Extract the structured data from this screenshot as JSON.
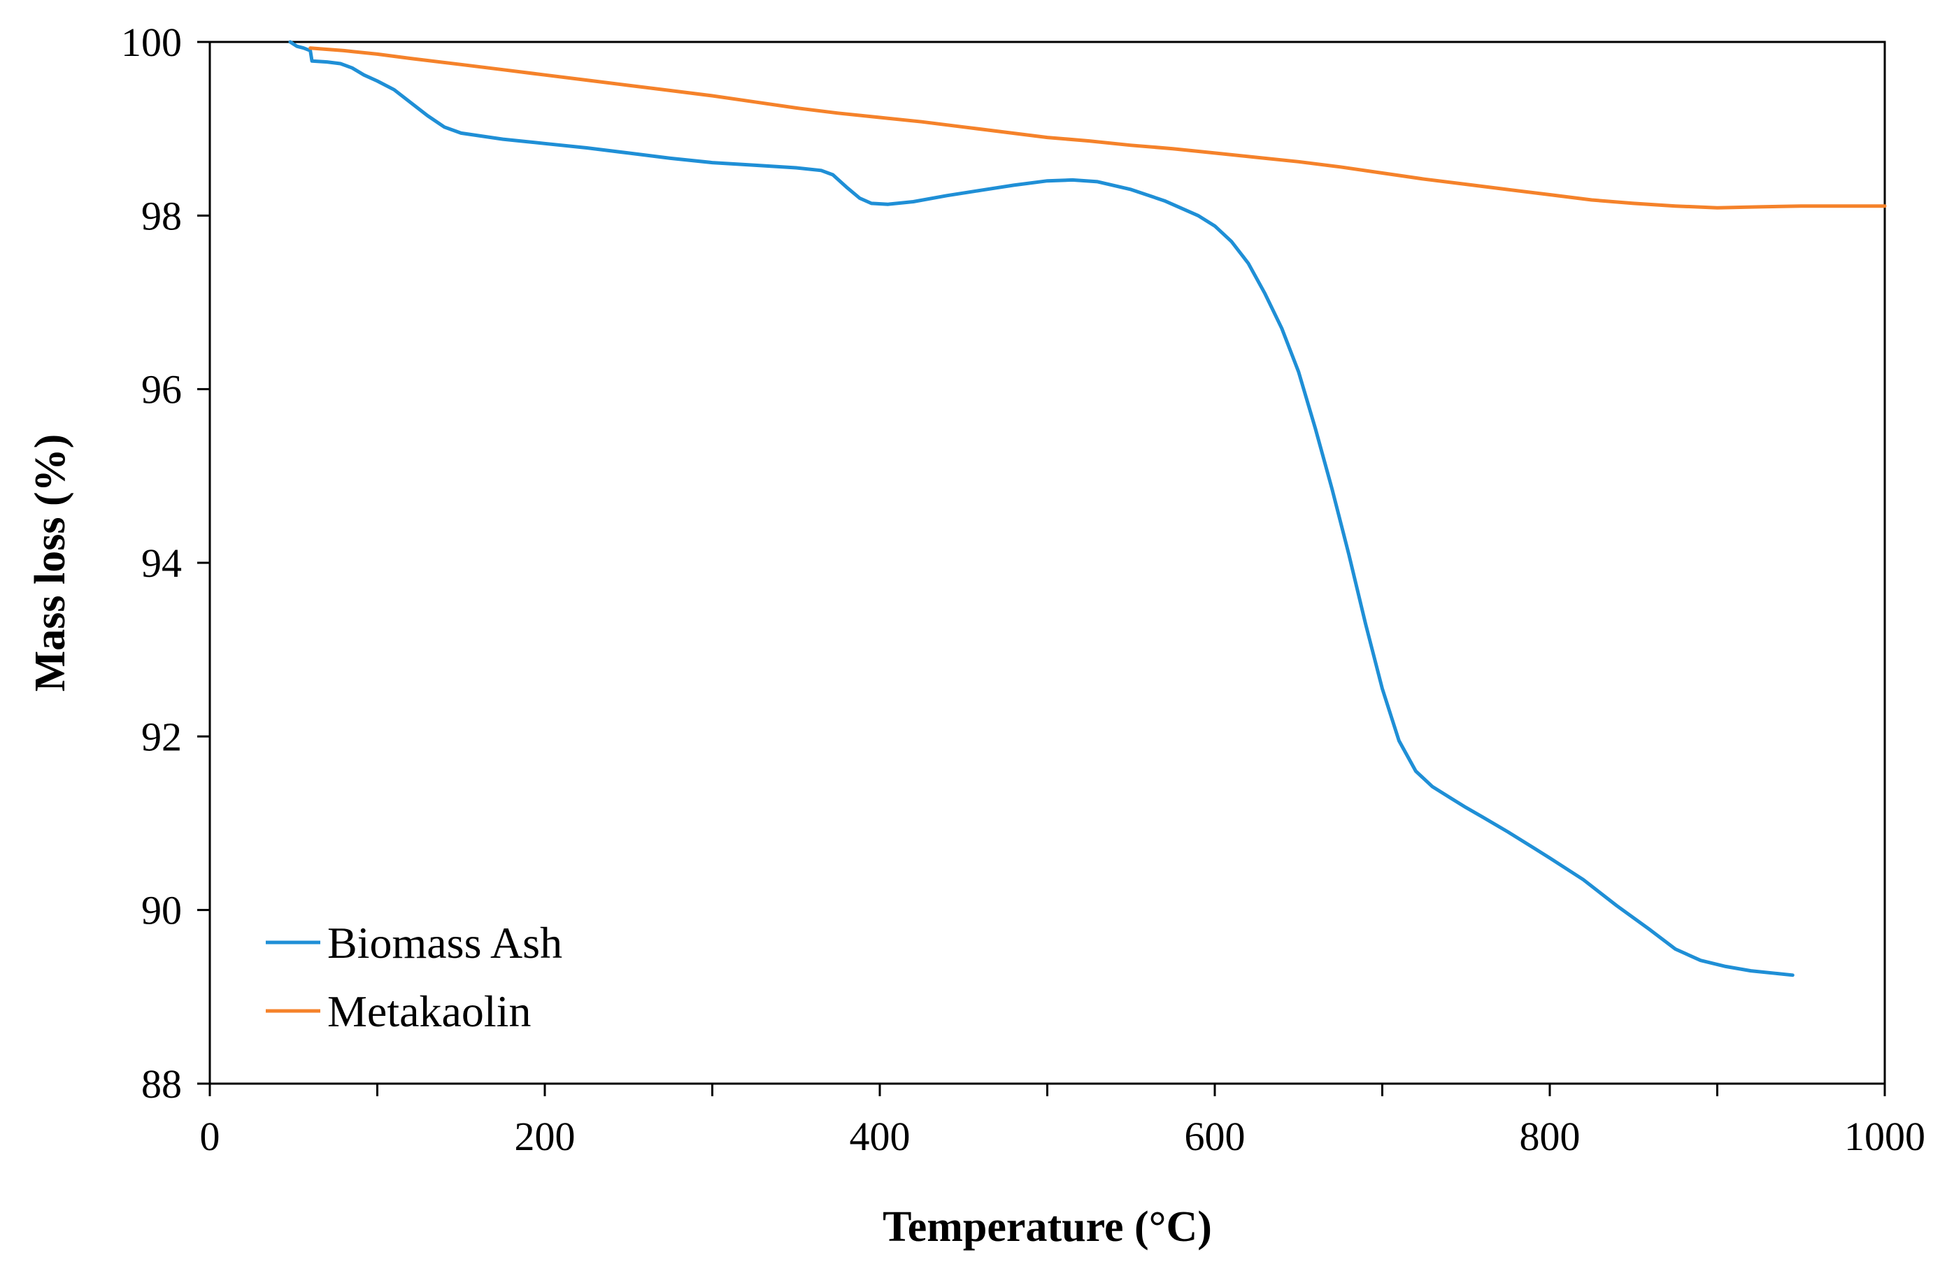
{
  "chart_data": {
    "type": "line",
    "title": "",
    "xlabel": "Temperature (°C)",
    "ylabel": "Mass loss (%)",
    "xlim": [
      0,
      1000
    ],
    "ylim": [
      88,
      100
    ],
    "x_ticks": [
      0,
      200,
      400,
      600,
      800,
      1000
    ],
    "x_minor_ticks": [
      100,
      300,
      500,
      700,
      900
    ],
    "y_ticks": [
      88,
      90,
      92,
      94,
      96,
      98,
      100
    ],
    "x_tick_labels": [
      "0",
      "200",
      "400",
      "600",
      "800",
      "1000"
    ],
    "y_tick_labels": [
      "88",
      "90",
      "92",
      "94",
      "96",
      "98",
      "100"
    ],
    "grid": false,
    "legend_position": "bottom-left",
    "series": [
      {
        "name": "Biomass Ash",
        "color": "#1f8fd6",
        "points": [
          [
            48,
            100.0
          ],
          [
            52,
            99.95
          ],
          [
            56,
            99.93
          ],
          [
            60,
            99.9
          ],
          [
            61,
            99.78
          ],
          [
            70,
            99.77
          ],
          [
            78,
            99.75
          ],
          [
            85,
            99.7
          ],
          [
            92,
            99.62
          ],
          [
            100,
            99.55
          ],
          [
            110,
            99.45
          ],
          [
            120,
            99.3
          ],
          [
            130,
            99.15
          ],
          [
            140,
            99.02
          ],
          [
            150,
            98.95
          ],
          [
            175,
            98.88
          ],
          [
            200,
            98.83
          ],
          [
            225,
            98.78
          ],
          [
            250,
            98.72
          ],
          [
            275,
            98.66
          ],
          [
            300,
            98.61
          ],
          [
            325,
            98.58
          ],
          [
            350,
            98.55
          ],
          [
            365,
            98.52
          ],
          [
            372,
            98.47
          ],
          [
            380,
            98.33
          ],
          [
            388,
            98.2
          ],
          [
            395,
            98.14
          ],
          [
            405,
            98.13
          ],
          [
            420,
            98.16
          ],
          [
            440,
            98.23
          ],
          [
            460,
            98.29
          ],
          [
            480,
            98.35
          ],
          [
            500,
            98.4
          ],
          [
            515,
            98.41
          ],
          [
            530,
            98.39
          ],
          [
            550,
            98.3
          ],
          [
            570,
            98.17
          ],
          [
            590,
            98.0
          ],
          [
            600,
            97.88
          ],
          [
            610,
            97.7
          ],
          [
            620,
            97.45
          ],
          [
            630,
            97.1
          ],
          [
            640,
            96.7
          ],
          [
            650,
            96.2
          ],
          [
            660,
            95.55
          ],
          [
            670,
            94.85
          ],
          [
            680,
            94.1
          ],
          [
            690,
            93.3
          ],
          [
            700,
            92.55
          ],
          [
            710,
            91.95
          ],
          [
            720,
            91.6
          ],
          [
            730,
            91.42
          ],
          [
            740,
            91.3
          ],
          [
            750,
            91.18
          ],
          [
            760,
            91.07
          ],
          [
            775,
            90.9
          ],
          [
            790,
            90.72
          ],
          [
            800,
            90.6
          ],
          [
            820,
            90.35
          ],
          [
            840,
            90.05
          ],
          [
            860,
            89.77
          ],
          [
            875,
            89.55
          ],
          [
            890,
            89.42
          ],
          [
            905,
            89.35
          ],
          [
            920,
            89.3
          ],
          [
            935,
            89.27
          ],
          [
            945,
            89.25
          ]
        ]
      },
      {
        "name": "Metakaolin",
        "color": "#f5822a",
        "points": [
          [
            60,
            99.93
          ],
          [
            80,
            99.9
          ],
          [
            100,
            99.86
          ],
          [
            120,
            99.81
          ],
          [
            150,
            99.74
          ],
          [
            175,
            99.68
          ],
          [
            200,
            99.62
          ],
          [
            225,
            99.56
          ],
          [
            250,
            99.5
          ],
          [
            275,
            99.44
          ],
          [
            300,
            99.38
          ],
          [
            325,
            99.31
          ],
          [
            350,
            99.24
          ],
          [
            375,
            99.18
          ],
          [
            400,
            99.13
          ],
          [
            425,
            99.08
          ],
          [
            450,
            99.02
          ],
          [
            475,
            98.96
          ],
          [
            500,
            98.9
          ],
          [
            525,
            98.86
          ],
          [
            550,
            98.81
          ],
          [
            575,
            98.77
          ],
          [
            600,
            98.72
          ],
          [
            625,
            98.67
          ],
          [
            650,
            98.62
          ],
          [
            675,
            98.56
          ],
          [
            700,
            98.49
          ],
          [
            725,
            98.42
          ],
          [
            750,
            98.36
          ],
          [
            775,
            98.3
          ],
          [
            800,
            98.24
          ],
          [
            825,
            98.18
          ],
          [
            850,
            98.14
          ],
          [
            875,
            98.11
          ],
          [
            900,
            98.09
          ],
          [
            925,
            98.1
          ],
          [
            950,
            98.11
          ],
          [
            975,
            98.11
          ],
          [
            1000,
            98.11
          ]
        ]
      }
    ]
  }
}
